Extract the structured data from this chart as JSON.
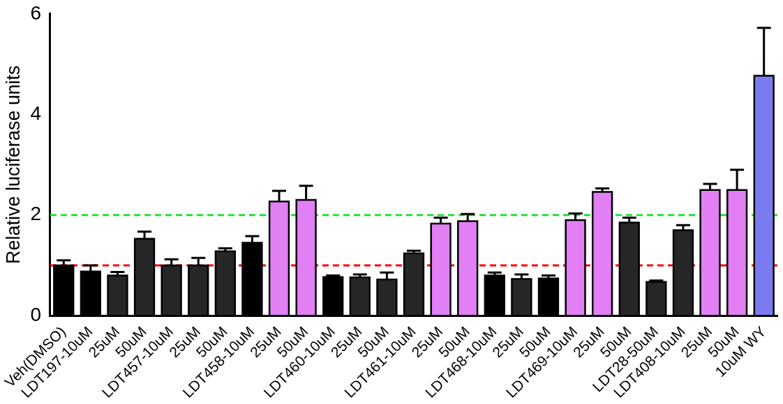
{
  "chart_data": {
    "type": "bar",
    "ylabel": "Relative luciferase units",
    "categories": [
      "Veh(DMSO)",
      "LDT197-10uM",
      "25uM",
      "50uM",
      "LDT457-10uM",
      "25uM",
      "50uM",
      "LDT458-10uM",
      "25uM",
      "50uM",
      "LDT460-10uM",
      "25uM",
      "50uM",
      "LDT461-10uM",
      "25uM",
      "50uM",
      "LDT468-10uM",
      "25uM",
      "50uM",
      "LDT469-10uM",
      "25uM",
      "50uM",
      "LDT28-50uM",
      "LDT408-10uM",
      "25uM",
      "50uM",
      "10uM WY"
    ],
    "values": [
      1.0,
      0.88,
      0.8,
      1.53,
      1.0,
      1.0,
      1.28,
      1.45,
      2.27,
      2.3,
      0.77,
      0.76,
      0.72,
      1.24,
      1.83,
      1.88,
      0.8,
      0.73,
      0.74,
      1.9,
      2.46,
      1.85,
      0.67,
      1.7,
      2.5,
      2.5,
      4.77
    ],
    "errors": [
      [
        1.0,
        1.1
      ],
      [
        0.88,
        1.0
      ],
      [
        0.8,
        0.87
      ],
      [
        1.53,
        1.67
      ],
      [
        1.0,
        1.12
      ],
      [
        1.0,
        1.15
      ],
      [
        1.28,
        1.34
      ],
      [
        1.45,
        1.58
      ],
      [
        2.27,
        2.48
      ],
      [
        2.3,
        2.58
      ],
      [
        0.77,
        0.8
      ],
      [
        0.76,
        0.82
      ],
      [
        0.72,
        0.86
      ],
      [
        1.24,
        1.29
      ],
      [
        1.83,
        1.95
      ],
      [
        1.88,
        2.02
      ],
      [
        0.8,
        0.86
      ],
      [
        0.73,
        0.82
      ],
      [
        0.74,
        0.8
      ],
      [
        1.9,
        2.03
      ],
      [
        2.46,
        2.53
      ],
      [
        1.85,
        1.95
      ],
      [
        0.67,
        0.7
      ],
      [
        1.7,
        1.8
      ],
      [
        2.5,
        2.62
      ],
      [
        2.5,
        2.9
      ],
      [
        4.77,
        5.72
      ]
    ],
    "colors": [
      "#000000",
      "#000000",
      "#262626",
      "#262626",
      "#262626",
      "#262626",
      "#262626",
      "#000000",
      "#e27ff5",
      "#e27ff5",
      "#000000",
      "#262626",
      "#262626",
      "#262626",
      "#e27ff5",
      "#e27ff5",
      "#000000",
      "#262626",
      "#000000",
      "#e27ff5",
      "#e27ff5",
      "#262626",
      "#262626",
      "#262626",
      "#e27ff5",
      "#e27ff5",
      "#7b7bf0"
    ],
    "ylim": [
      0,
      6
    ],
    "yticks": [
      0,
      2,
      4,
      6
    ],
    "grid": false,
    "legend": false,
    "ref_lines": [
      {
        "axis": "y",
        "value": 1,
        "color": "#ff0000",
        "line_style": "dashed"
      },
      {
        "axis": "y",
        "value": 2,
        "color": "#22e03a",
        "line_style": "dashed"
      }
    ]
  }
}
